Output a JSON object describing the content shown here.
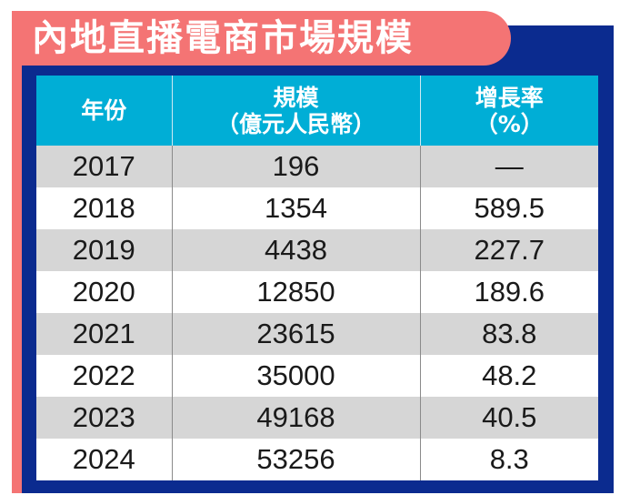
{
  "title": "內地直播電商市場規模",
  "colors": {
    "coral": "#f47474",
    "navy": "#0b2b8f",
    "header_cyan": "#00aed6",
    "row_gray": "#d6d6d6",
    "row_white": "#ffffff"
  },
  "table": {
    "headers": [
      {
        "line1": "年份",
        "line2": ""
      },
      {
        "line1": "規模",
        "line2": "（億元人民幣）"
      },
      {
        "line1": "增長率",
        "line2": "（%）"
      }
    ],
    "rows": [
      {
        "year": "2017",
        "scale": "196",
        "growth": "—"
      },
      {
        "year": "2018",
        "scale": "1354",
        "growth": "589.5"
      },
      {
        "year": "2019",
        "scale": "4438",
        "growth": "227.7"
      },
      {
        "year": "2020",
        "scale": "12850",
        "growth": "189.6"
      },
      {
        "year": "2021",
        "scale": "23615",
        "growth": "83.8"
      },
      {
        "year": "2022",
        "scale": "35000",
        "growth": "48.2"
      },
      {
        "year": "2023",
        "scale": "49168",
        "growth": "40.5"
      },
      {
        "year": "2024",
        "scale": "53256",
        "growth": "8.3"
      }
    ]
  }
}
